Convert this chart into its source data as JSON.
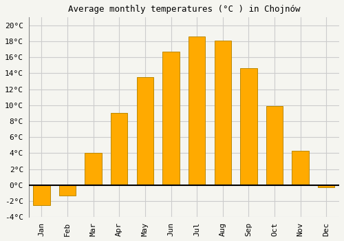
{
  "title": "Average monthly temperatures (°C ) in Chojnów",
  "months": [
    "Jan",
    "Feb",
    "Mar",
    "Apr",
    "May",
    "Jun",
    "Jul",
    "Aug",
    "Sep",
    "Oct",
    "Nov",
    "Dec"
  ],
  "values": [
    -2.5,
    -1.3,
    4.0,
    9.0,
    13.5,
    16.7,
    18.6,
    18.1,
    14.6,
    9.9,
    4.3,
    -0.3
  ],
  "bar_color": "#FFAA00",
  "bar_edge_color": "#BB8800",
  "ylim": [
    -4,
    21
  ],
  "yticks": [
    -4,
    -2,
    0,
    2,
    4,
    6,
    8,
    10,
    12,
    14,
    16,
    18,
    20
  ],
  "background_color": "#f5f5f0",
  "plot_bg_color": "#f5f5f0",
  "grid_color": "#cccccc",
  "title_fontsize": 9,
  "tick_fontsize": 8,
  "bar_width": 0.65
}
